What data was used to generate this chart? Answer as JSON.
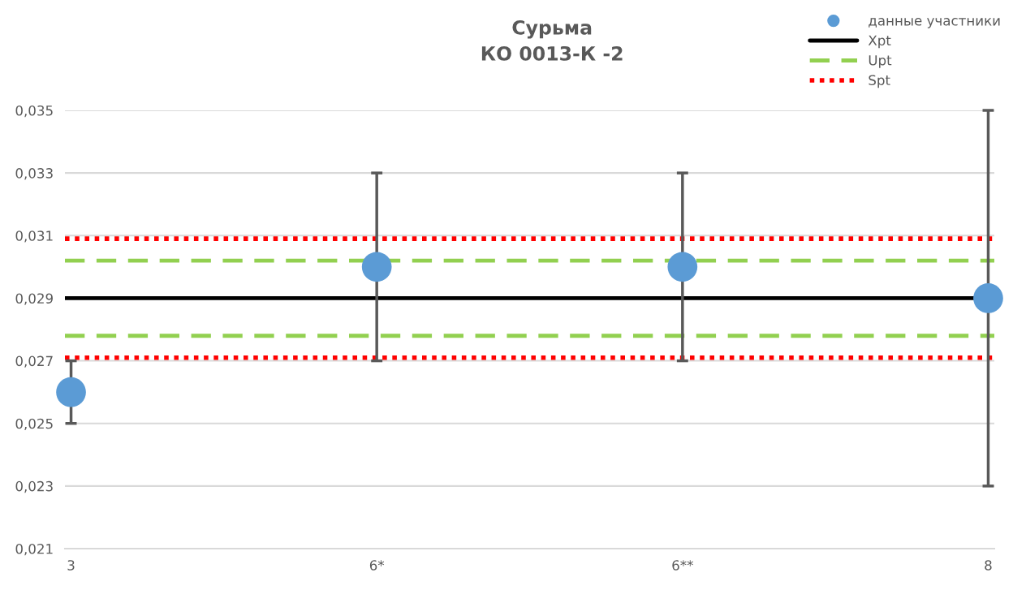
{
  "chart_data": {
    "type": "scatter",
    "title": "Сурьма\nКО 0013-К -2",
    "categories": [
      "3",
      "6*",
      "6**",
      "8"
    ],
    "series": [
      {
        "name": "данные участники",
        "color": "#5b9bd5",
        "values": [
          0.026,
          0.03,
          0.03,
          0.029
        ],
        "errors": [
          [
            0.025,
            0.027
          ],
          [
            0.027,
            0.033
          ],
          [
            0.027,
            0.033
          ],
          [
            0.023,
            0.035
          ]
        ]
      }
    ],
    "ref_lines": [
      {
        "axis": "y",
        "value": 0.029,
        "label": "Xpt",
        "color": "#000000",
        "line_style": "solid"
      },
      {
        "axis": "y",
        "value": 0.0302,
        "label": "Upt",
        "color": "#92d050",
        "line_style": "dashed"
      },
      {
        "axis": "y",
        "value": 0.0278,
        "label": null,
        "color": "#92d050",
        "line_style": "dashed"
      },
      {
        "axis": "y",
        "value": 0.0309,
        "label": "Spt",
        "color": "#ff0000",
        "line_style": "dotted"
      },
      {
        "axis": "y",
        "value": 0.0271,
        "label": null,
        "color": "#ff0000",
        "line_style": "dotted"
      }
    ],
    "ylim": [
      0.021,
      0.035
    ],
    "yticks": [
      {
        "value": 0.021,
        "label": "0,021"
      },
      {
        "value": 0.023,
        "label": "0,023"
      },
      {
        "value": 0.025,
        "label": "0,025"
      },
      {
        "value": 0.027,
        "label": "0,027"
      },
      {
        "value": 0.029,
        "label": "0,029"
      },
      {
        "value": 0.031,
        "label": "0,031"
      },
      {
        "value": 0.033,
        "label": "0,033"
      },
      {
        "value": 0.035,
        "label": "0,035"
      }
    ],
    "grid": "y",
    "legend": "top right",
    "marker": "circle"
  }
}
